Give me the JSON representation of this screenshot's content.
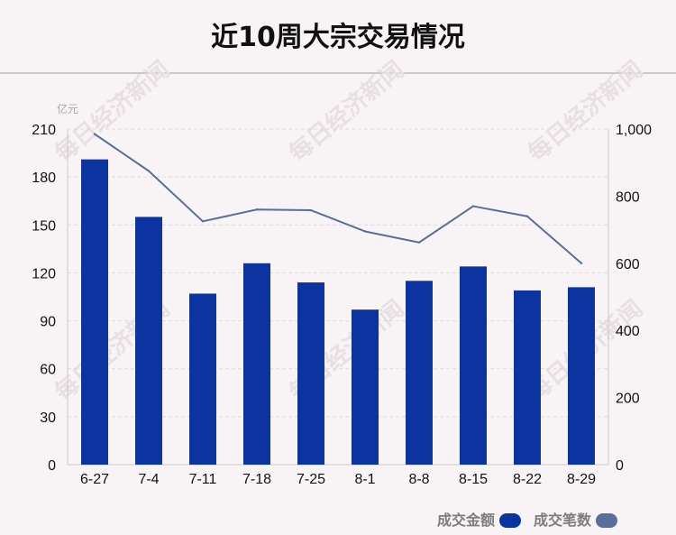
{
  "title": "近10周大宗交易情况",
  "watermark": "每日经济新闻",
  "chart_data": {
    "type": "bar",
    "categories": [
      "6-27",
      "7-4",
      "7-11",
      "7-18",
      "7-25",
      "8-1",
      "8-8",
      "8-15",
      "8-22",
      "8-29"
    ],
    "series": [
      {
        "name": "成交金额",
        "type": "bar",
        "axis": "left",
        "color": "#0c34a0",
        "values": [
          191,
          155,
          107,
          126,
          114,
          97,
          115,
          124,
          109,
          111
        ]
      },
      {
        "name": "成交笔数",
        "type": "line",
        "axis": "right",
        "color": "#5a6e9a",
        "values": [
          985,
          875,
          725,
          760,
          758,
          695,
          662,
          770,
          740,
          600
        ]
      }
    ],
    "y_left": {
      "unit": "亿元",
      "lim": [
        0,
        210
      ],
      "ticks": [
        0,
        30,
        60,
        90,
        120,
        150,
        180,
        210
      ]
    },
    "y_right": {
      "lim": [
        0,
        1000
      ],
      "ticks": [
        "0",
        "200",
        "400",
        "600",
        "800",
        "1,000"
      ]
    },
    "grid": true,
    "legend_position": "bottom-right"
  }
}
